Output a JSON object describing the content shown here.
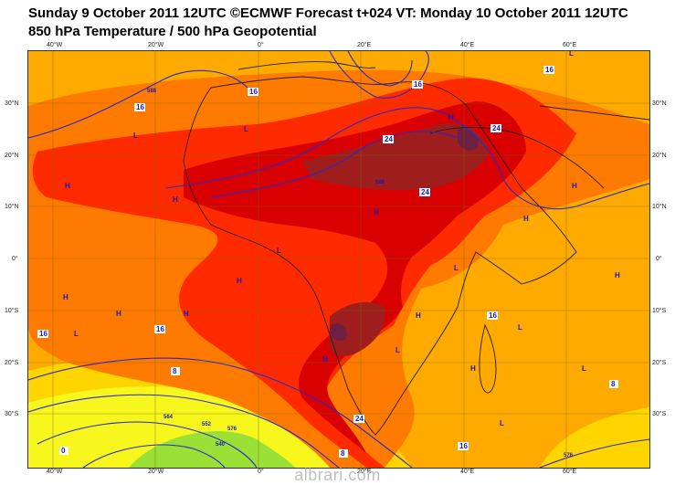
{
  "title": {
    "line1": "Sunday 9 October 2011 12UTC ©ECMWF Forecast t+024 VT: Monday 10 October 2011 12UTC",
    "line2": "850 hPa Temperature / 500 hPa Geopotential"
  },
  "axes": {
    "top_longitudes": [
      "40°W",
      "20°W",
      "0°",
      "20°E",
      "40°E",
      "60°E"
    ],
    "bottom_longitudes": [
      "40°W",
      "20°W",
      "0°",
      "20°E",
      "40°E",
      "60°E"
    ],
    "latitudes": [
      "30°N",
      "20°N",
      "10°N",
      "0°",
      "10°S",
      "20°S",
      "30°S"
    ]
  },
  "temperature_labels": [
    "16",
    "16",
    "16",
    "16",
    "16",
    "16",
    "16",
    "24",
    "24",
    "24",
    "24",
    "8",
    "8",
    "8",
    "16",
    "0"
  ],
  "geopotential_labels": [
    "588",
    "576",
    "564",
    "552",
    "540",
    "576",
    "588"
  ],
  "pressure_markers": [
    "H",
    "L",
    "L",
    "H",
    "H",
    "L",
    "H",
    "L",
    "H",
    "H",
    "L",
    "H",
    "L",
    "H",
    "H",
    "L",
    "H",
    "L",
    "H",
    "L",
    "H",
    "H",
    "L",
    "H"
  ],
  "colors": {
    "cold_green": "#9be037",
    "cool_yellow": "#f7f71e",
    "mild_yellow": "#ffd500",
    "warm_orange": "#ffaa00",
    "hot_orange": "#ff7a00",
    "very_hot": "#ff2a00",
    "extreme": "#d80000",
    "max_hot": "#9e1e1e",
    "peak": "#6e1f44",
    "contour": "#2a2ac8",
    "coast": "#202020"
  },
  "footer": "albrari.com"
}
